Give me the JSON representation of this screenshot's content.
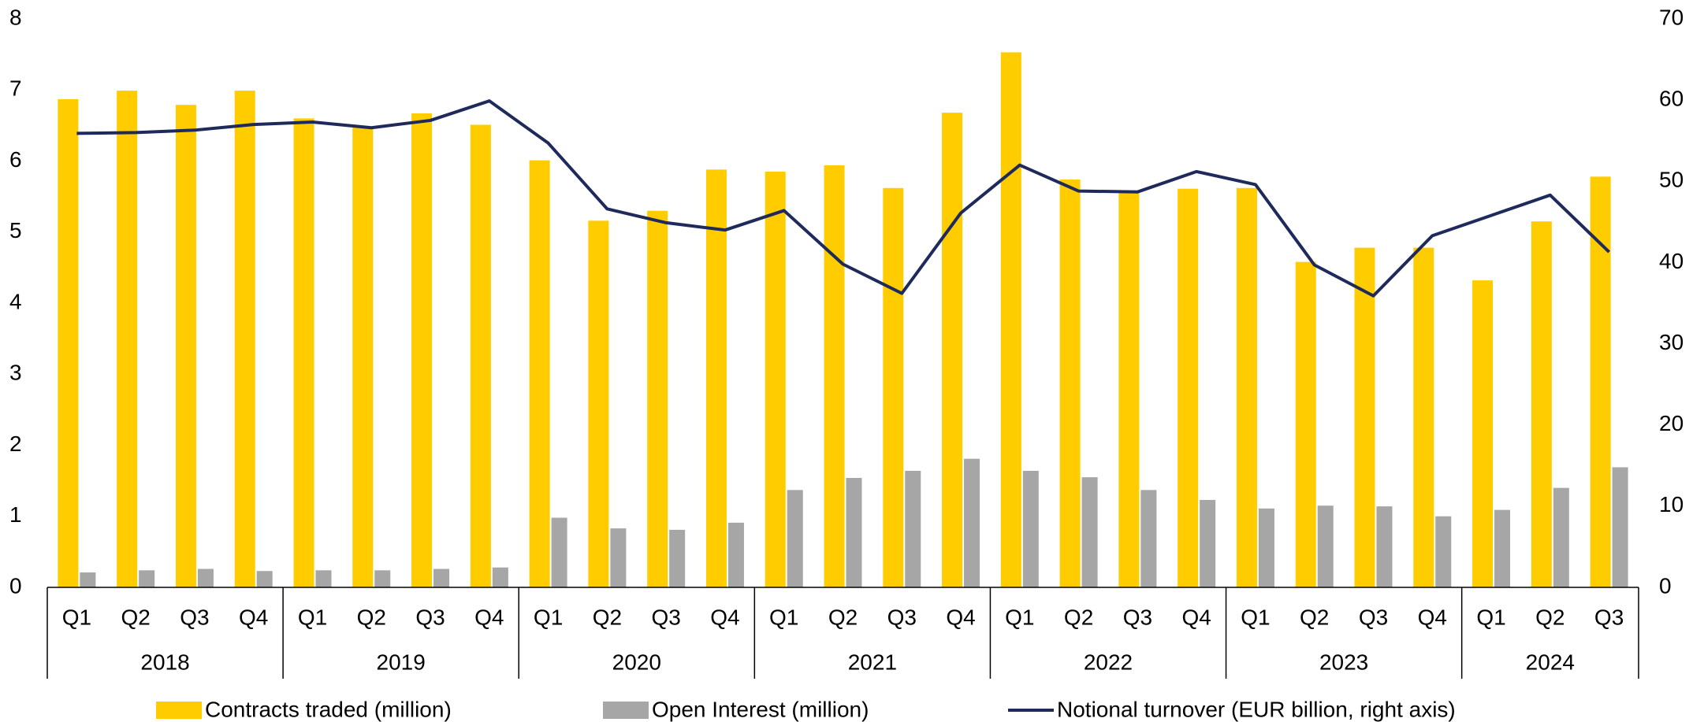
{
  "chart_data": {
    "type": "bar-line",
    "categories": [
      "Q1",
      "Q2",
      "Q3",
      "Q4",
      "Q1",
      "Q2",
      "Q3",
      "Q4",
      "Q1",
      "Q2",
      "Q3",
      "Q4",
      "Q1",
      "Q2",
      "Q3",
      "Q4",
      "Q1",
      "Q2",
      "Q3",
      "Q4",
      "Q1",
      "Q2",
      "Q3",
      "Q4",
      "Q1",
      "Q2",
      "Q3"
    ],
    "years": [
      "2018",
      "2019",
      "2020",
      "2021",
      "2022",
      "2023",
      "2024"
    ],
    "series": [
      {
        "name": "Contracts traded (million)",
        "color": "#ffcc00",
        "kind": "bar",
        "values": [
          6.87,
          6.99,
          6.79,
          6.99,
          6.6,
          6.47,
          6.67,
          6.51,
          6.01,
          5.16,
          5.3,
          5.88,
          5.85,
          5.94,
          5.62,
          6.68,
          7.53,
          5.74,
          5.56,
          5.61,
          5.62,
          4.58,
          4.78,
          4.78,
          4.32,
          5.15,
          5.78
        ]
      },
      {
        "name": "Open Interest (million)",
        "color": "#a6a6a6",
        "kind": "bar",
        "values": [
          0.21,
          0.24,
          0.26,
          0.23,
          0.24,
          0.24,
          0.26,
          0.28,
          0.98,
          0.83,
          0.81,
          0.91,
          1.37,
          1.54,
          1.64,
          1.81,
          1.64,
          1.55,
          1.37,
          1.23,
          1.11,
          1.15,
          1.14,
          1.0,
          1.09,
          1.4,
          1.69
        ]
      },
      {
        "name": "Notional turnover (EUR billion, right axis)",
        "color": "#1f2a5c",
        "kind": "line",
        "axis": "y2",
        "values": [
          55.9,
          56.0,
          56.3,
          57.0,
          57.3,
          56.6,
          57.5,
          59.9,
          54.7,
          46.6,
          44.9,
          44.0,
          46.4,
          39.8,
          36.2,
          46.1,
          52.0,
          48.8,
          48.7,
          51.2,
          49.6,
          39.7,
          35.9,
          43.3,
          45.8,
          48.3,
          41.3
        ]
      }
    ],
    "ylim": [
      0,
      8
    ],
    "yticks": [
      0,
      1,
      2,
      3,
      4,
      5,
      6,
      7,
      8
    ],
    "y2lim": [
      0,
      70
    ],
    "y2ticks": [
      0,
      10,
      20,
      30,
      40,
      50,
      60,
      70
    ],
    "legend": "bottom"
  }
}
